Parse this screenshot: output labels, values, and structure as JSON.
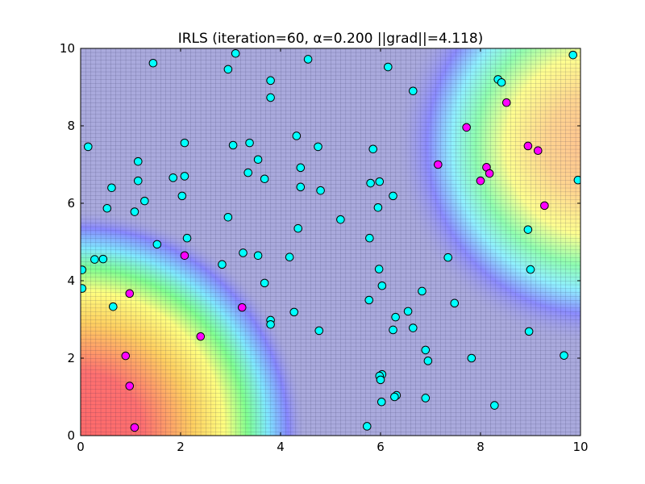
{
  "chart_data": {
    "type": "scatter",
    "title": "IRLS (iteration=60, α=0.200 ||grad||=4.118)",
    "xlabel": "",
    "ylabel": "",
    "xlim": [
      0,
      10
    ],
    "ylim": [
      0,
      10
    ],
    "xticks": [
      0,
      2,
      4,
      6,
      8,
      10
    ],
    "yticks": [
      0,
      2,
      4,
      6,
      8,
      10
    ],
    "xtick_labels": [
      "0",
      "2",
      "4",
      "6",
      "8",
      "10"
    ],
    "ytick_labels": [
      "0",
      "2",
      "4",
      "6",
      "8",
      "10"
    ],
    "grid": true,
    "background": "heatmap of classifier output: high (red/yellow) near lower-left and right, low (blue) elsewhere",
    "colors": {
      "class_a": "#00ffff",
      "class_b": "#ff00ff",
      "marker_edge": "#000000",
      "low_region": "#aaaadd"
    },
    "series": [
      {
        "points": [
          [
            1.45,
            9.62
          ],
          [
            3.1,
            9.87
          ],
          [
            2.95,
            9.46
          ],
          [
            4.55,
            9.72
          ],
          [
            6.15,
            9.52
          ],
          [
            9.85,
            9.83
          ],
          [
            3.8,
            9.17
          ],
          [
            3.8,
            8.73
          ],
          [
            6.65,
            8.9
          ],
          [
            8.35,
            9.2
          ],
          [
            8.42,
            9.12
          ],
          [
            0.15,
            7.46
          ],
          [
            2.08,
            7.56
          ],
          [
            3.05,
            7.5
          ],
          [
            3.38,
            7.56
          ],
          [
            4.32,
            7.74
          ],
          [
            4.75,
            7.46
          ],
          [
            5.85,
            7.4
          ],
          [
            1.15,
            7.08
          ],
          [
            3.55,
            7.13
          ],
          [
            4.4,
            6.92
          ],
          [
            1.85,
            6.66
          ],
          [
            2.08,
            6.7
          ],
          [
            3.35,
            6.79
          ],
          [
            3.68,
            6.63
          ],
          [
            1.15,
            6.58
          ],
          [
            0.62,
            6.4
          ],
          [
            4.4,
            6.42
          ],
          [
            4.8,
            6.33
          ],
          [
            5.8,
            6.52
          ],
          [
            5.98,
            6.56
          ],
          [
            6.25,
            6.19
          ],
          [
            9.95,
            6.6
          ],
          [
            2.03,
            6.19
          ],
          [
            1.28,
            6.06
          ],
          [
            0.53,
            5.87
          ],
          [
            1.08,
            5.78
          ],
          [
            5.95,
            5.89
          ],
          [
            2.95,
            5.64
          ],
          [
            5.2,
            5.58
          ],
          [
            4.35,
            5.35
          ],
          [
            8.95,
            5.32
          ],
          [
            2.13,
            5.1
          ],
          [
            5.78,
            5.1
          ],
          [
            1.53,
            4.94
          ],
          [
            0.28,
            4.55
          ],
          [
            0.45,
            4.56
          ],
          [
            3.25,
            4.72
          ],
          [
            3.55,
            4.65
          ],
          [
            4.18,
            4.61
          ],
          [
            7.35,
            4.6
          ],
          [
            2.83,
            4.42
          ],
          [
            0.03,
            4.28
          ],
          [
            5.97,
            4.3
          ],
          [
            9.0,
            4.29
          ],
          [
            3.68,
            3.94
          ],
          [
            6.03,
            3.87
          ],
          [
            0.03,
            3.8
          ],
          [
            6.83,
            3.73
          ],
          [
            5.77,
            3.5
          ],
          [
            7.48,
            3.42
          ],
          [
            0.65,
            3.33
          ],
          [
            4.27,
            3.19
          ],
          [
            6.55,
            3.21
          ],
          [
            6.3,
            3.06
          ],
          [
            3.8,
            2.98
          ],
          [
            3.8,
            2.87
          ],
          [
            4.77,
            2.71
          ],
          [
            6.25,
            2.73
          ],
          [
            6.65,
            2.78
          ],
          [
            8.97,
            2.69
          ],
          [
            6.9,
            2.21
          ],
          [
            6.95,
            1.93
          ],
          [
            7.82,
            2.0
          ],
          [
            9.67,
            2.07
          ],
          [
            6.03,
            1.58
          ],
          [
            5.98,
            1.54
          ],
          [
            6.0,
            1.44
          ],
          [
            6.32,
            1.04
          ],
          [
            6.28,
            1.0
          ],
          [
            6.9,
            0.97
          ],
          [
            6.02,
            0.87
          ],
          [
            8.28,
            0.78
          ],
          [
            5.73,
            0.24
          ]
        ]
      },
      {
        "points": [
          [
            8.52,
            8.6
          ],
          [
            7.72,
            7.96
          ],
          [
            8.95,
            7.48
          ],
          [
            9.15,
            7.36
          ],
          [
            7.15,
            7.0
          ],
          [
            8.12,
            6.93
          ],
          [
            8.18,
            6.77
          ],
          [
            8.0,
            6.58
          ],
          [
            9.28,
            5.94
          ],
          [
            2.08,
            4.65
          ],
          [
            0.98,
            3.67
          ],
          [
            3.23,
            3.31
          ],
          [
            2.4,
            2.56
          ],
          [
            0.9,
            2.06
          ],
          [
            0.98,
            1.28
          ],
          [
            1.08,
            0.21
          ]
        ]
      }
    ]
  }
}
